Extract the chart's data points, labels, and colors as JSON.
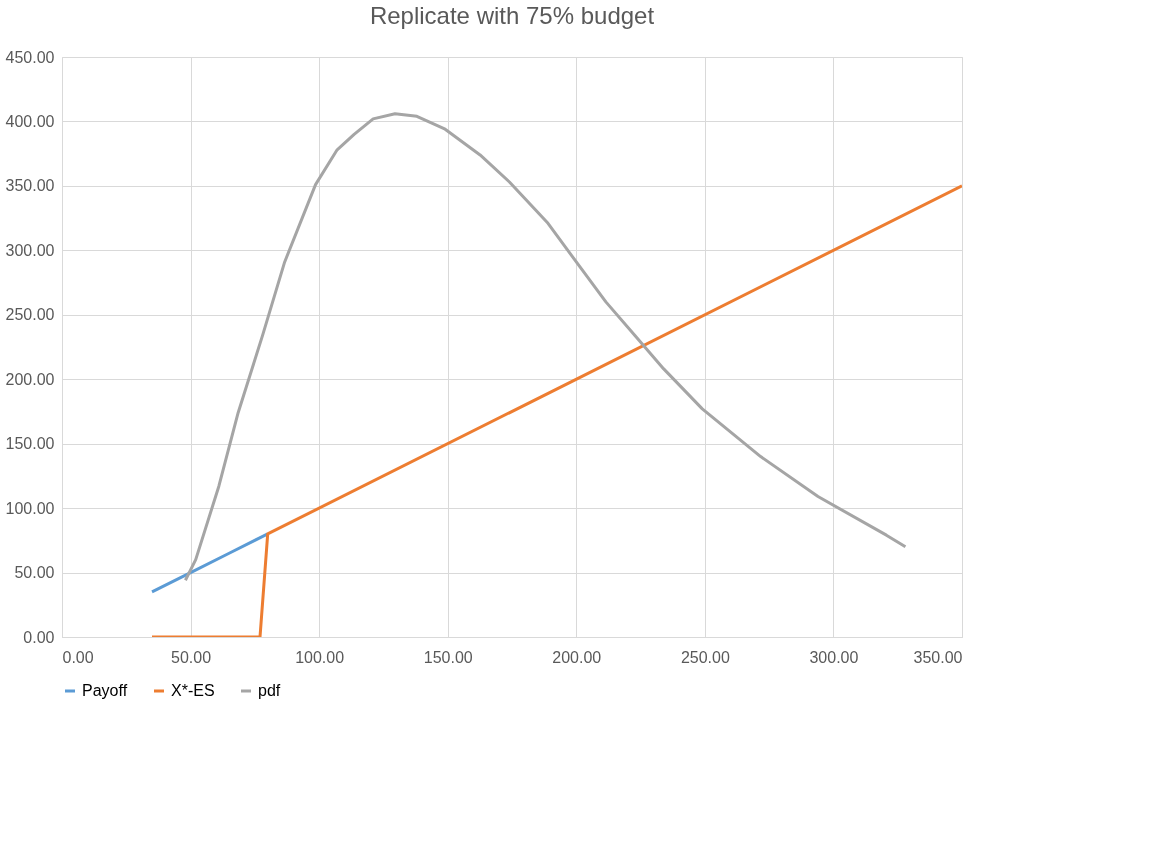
{
  "chart_data": {
    "type": "line",
    "title": "Replicate with 75% budget",
    "series": [
      {
        "name": "Payoff",
        "color": "#5b9bd5",
        "x": [
          35,
          50,
          65,
          80
        ],
        "values": [
          35,
          50,
          65,
          80
        ]
      },
      {
        "name": "X*-ES",
        "color": "#ed7d31",
        "x": [
          35,
          77,
          80,
          350
        ],
        "values": [
          0,
          0,
          80,
          350
        ]
      },
      {
        "name": "pdf",
        "color": "#a5a5a5",
        "x": [
          48,
          52,
          61,
          68.5,
          78,
          86.6,
          98.6,
          107,
          113.6,
          121,
          129.5,
          138,
          149,
          162.6,
          174,
          189,
          200,
          211.5,
          222.8,
          234,
          249,
          271.7,
          294,
          320.6,
          328
        ],
        "values": [
          44,
          60,
          117,
          174,
          234,
          291,
          351,
          378,
          390,
          402,
          406,
          404,
          394,
          374,
          353,
          321,
          291,
          260,
          234,
          208,
          177,
          140,
          109,
          79,
          70
        ]
      }
    ],
    "xlim": [
      0,
      350
    ],
    "xticks": [
      {
        "value": 0,
        "label": "0.00"
      },
      {
        "value": 50,
        "label": "50.00"
      },
      {
        "value": 100,
        "label": "100.00"
      },
      {
        "value": 150,
        "label": "150.00"
      },
      {
        "value": 200,
        "label": "200.00"
      },
      {
        "value": 250,
        "label": "250.00"
      },
      {
        "value": 300,
        "label": "300.00"
      },
      {
        "value": 350,
        "label": "350.00"
      }
    ],
    "ylim": [
      0,
      450
    ],
    "yticks": [
      {
        "value": 0,
        "label": "0.00"
      },
      {
        "value": 50,
        "label": "50.00"
      },
      {
        "value": 100,
        "label": "100.00"
      },
      {
        "value": 150,
        "label": "150.00"
      },
      {
        "value": 200,
        "label": "200.00"
      },
      {
        "value": 250,
        "label": "250.00"
      },
      {
        "value": 300,
        "label": "300.00"
      },
      {
        "value": 350,
        "label": "350.00"
      },
      {
        "value": 400,
        "label": "400.00"
      },
      {
        "value": 450,
        "label": "450.00"
      }
    ],
    "grid": true,
    "legend": "bottom",
    "marker": "none",
    "line_style": "solid"
  }
}
